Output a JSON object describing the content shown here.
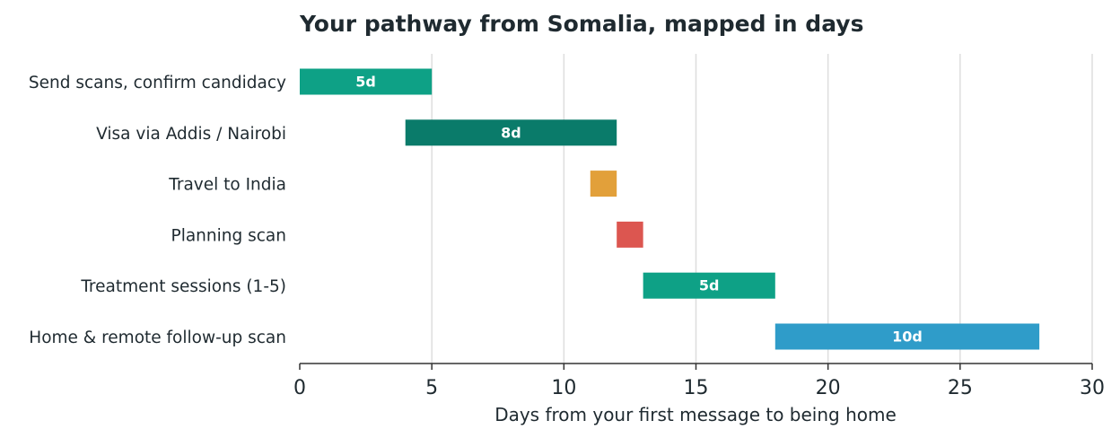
{
  "chart_data": {
    "type": "bar",
    "orientation": "horizontal-gantt",
    "title": "Your pathway from Somalia, mapped in days",
    "xlabel": "Days from your first message to being home",
    "ylabel": "",
    "xlim": [
      0,
      30
    ],
    "xticks": [
      0,
      5,
      10,
      15,
      20,
      25,
      30
    ],
    "grid": "vertical",
    "legend": "none",
    "tasks": [
      {
        "label": "Send scans, confirm candidacy",
        "start": 0,
        "end": 5,
        "value_label": "5d",
        "color": "#0ea186"
      },
      {
        "label": "Visa via Addis / Nairobi",
        "start": 4,
        "end": 12,
        "value_label": "8d",
        "color": "#0a7b6a"
      },
      {
        "label": "Travel to India",
        "start": 11,
        "end": 12,
        "value_label": "",
        "color": "#e2a03a"
      },
      {
        "label": "Planning scan",
        "start": 12,
        "end": 13,
        "value_label": "",
        "color": "#dc5650"
      },
      {
        "label": "Treatment sessions (1-5)",
        "start": 13,
        "end": 18,
        "value_label": "5d",
        "color": "#0ea186"
      },
      {
        "label": "Home & remote follow-up scan",
        "start": 18,
        "end": 28,
        "value_label": "10d",
        "color": "#2f9cc9"
      }
    ]
  }
}
